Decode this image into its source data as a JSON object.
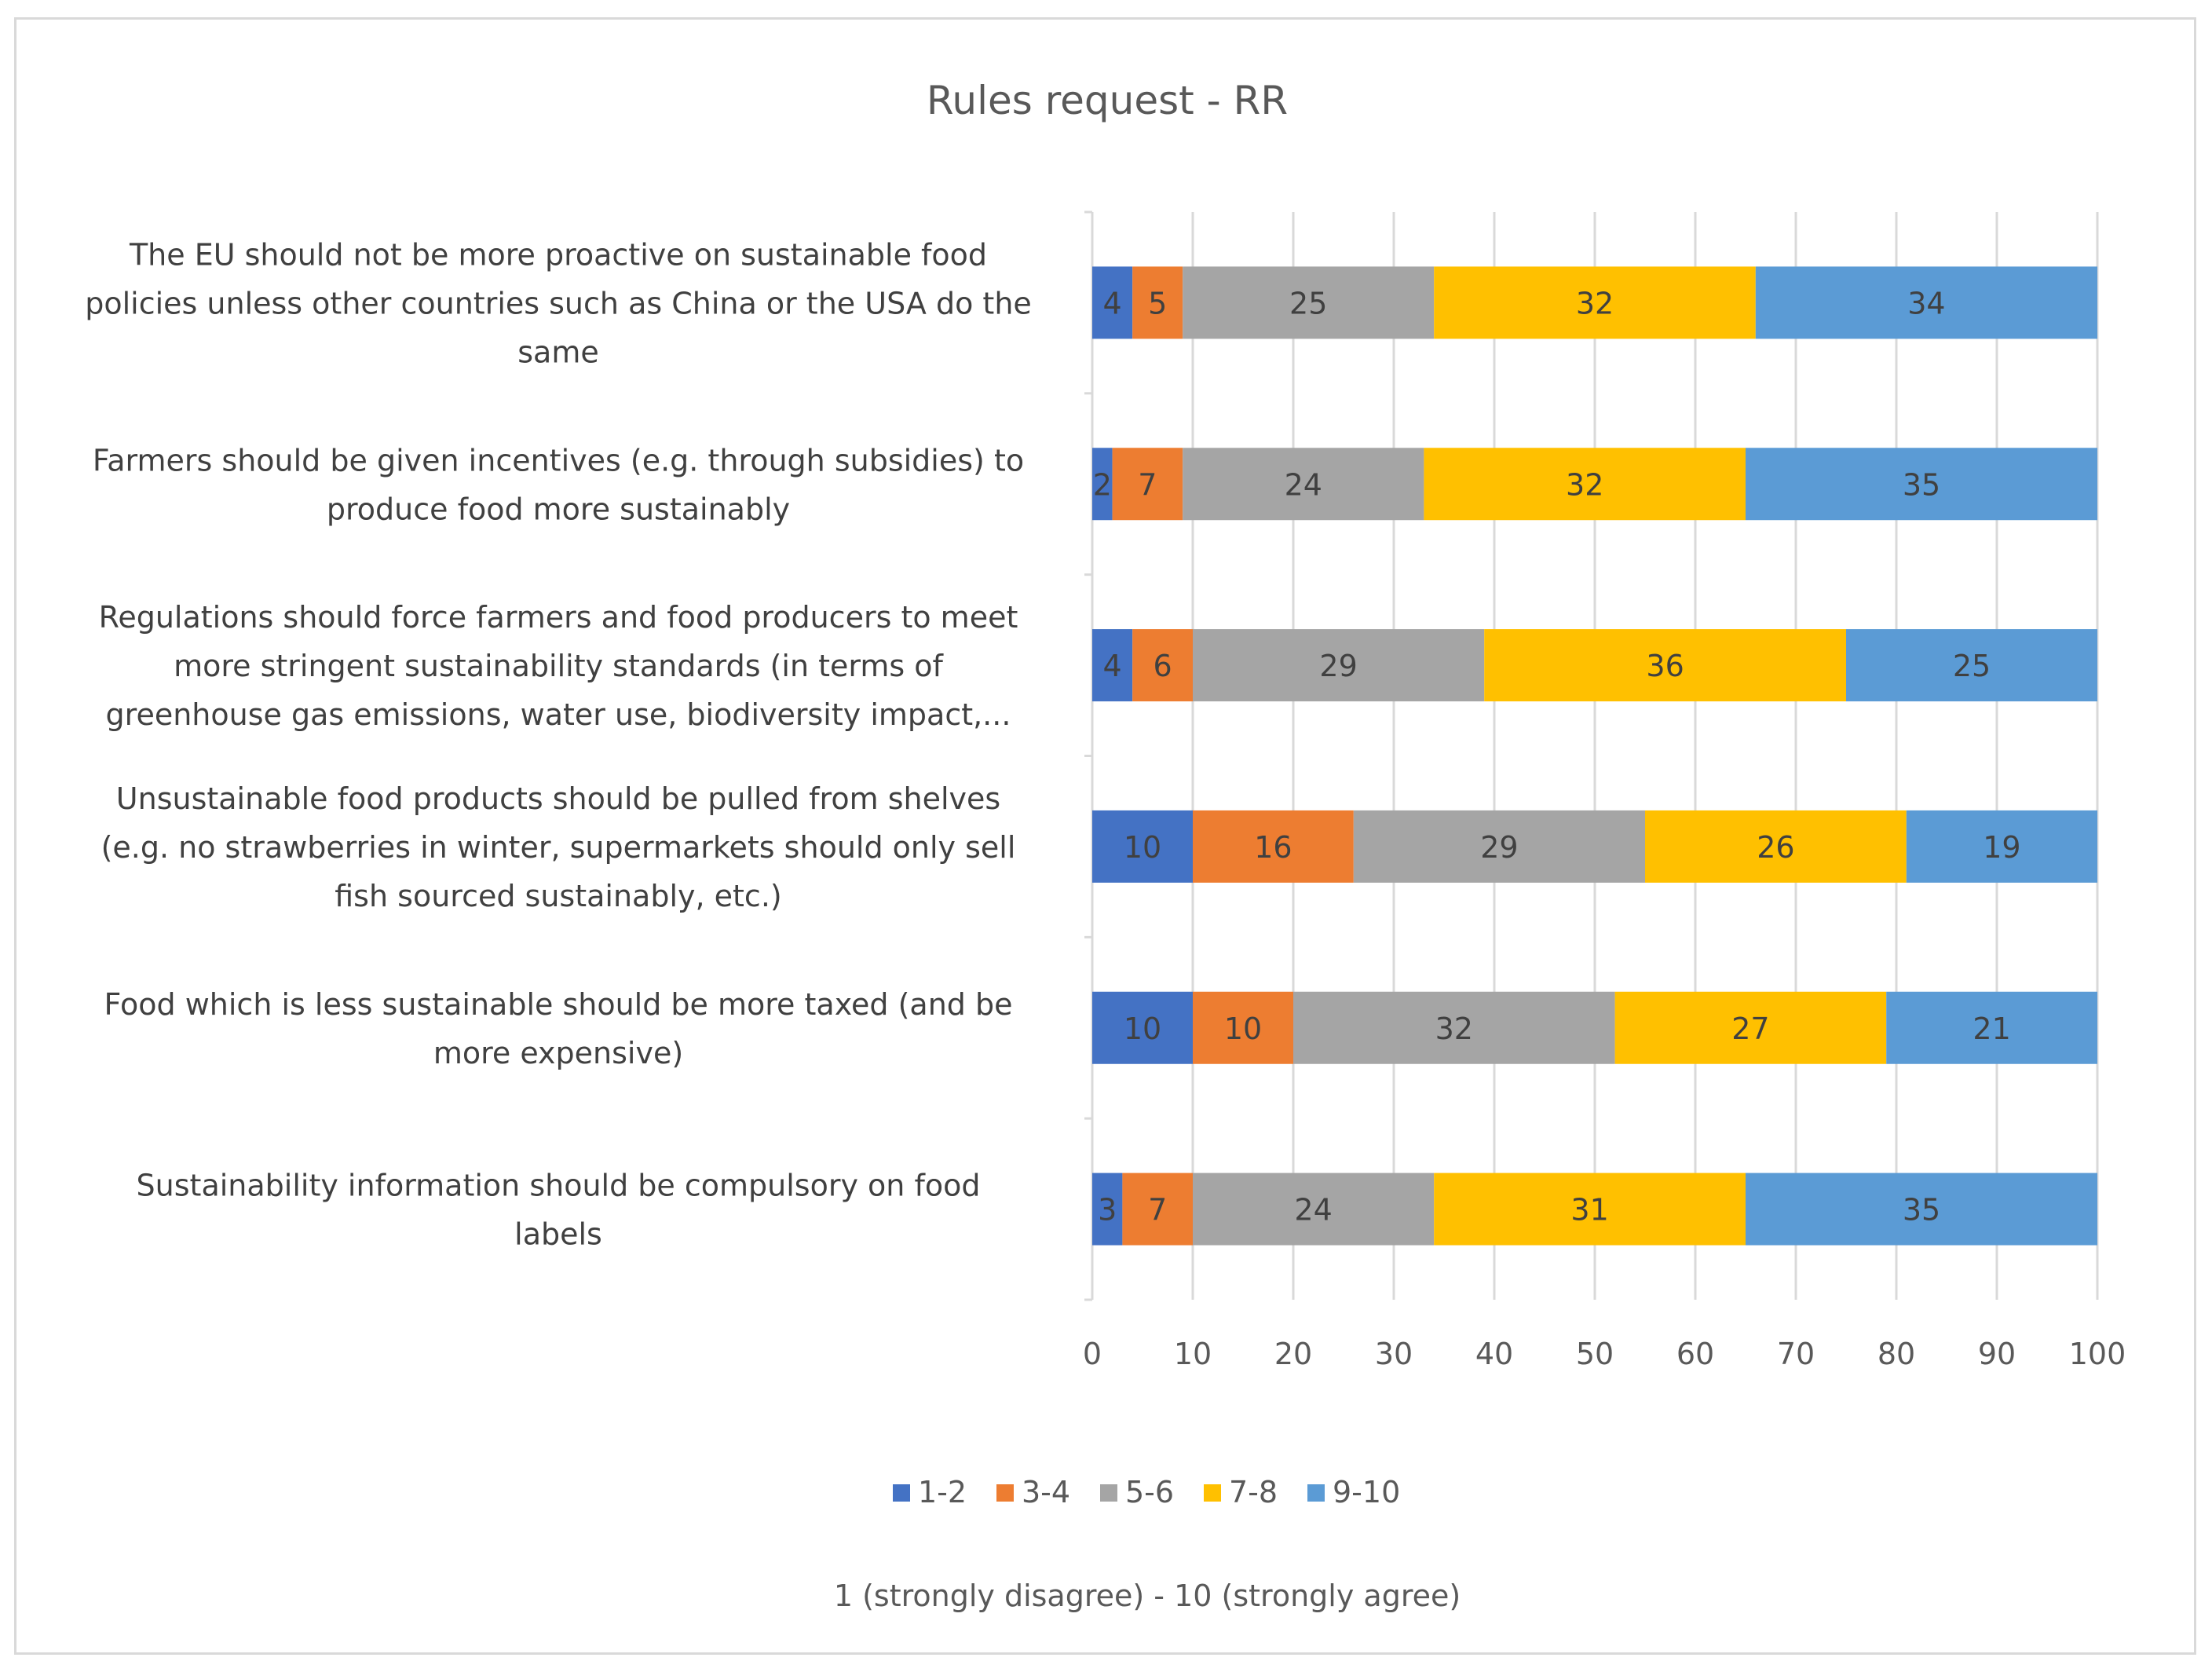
{
  "chart_data": {
    "type": "bar",
    "orientation": "horizontal",
    "stacked": true,
    "title": "Rules request - RR",
    "subtitle": "1 (strongly disagree) - 10 (strongly agree)",
    "xlabel": "",
    "ylabel": "",
    "xlim": [
      0,
      100
    ],
    "xticks": [
      0,
      10,
      20,
      30,
      40,
      50,
      60,
      70,
      80,
      90,
      100
    ],
    "grid": true,
    "legend_position": "bottom",
    "categories": [
      [
        "The EU should not be more proactive on sustainable food",
        "policies unless other countries such as China or the USA do the",
        "same"
      ],
      [
        "Farmers should be given incentives (e.g. through subsidies) to",
        "produce food more sustainably"
      ],
      [
        "Regulations should force farmers and food producers to meet",
        "more stringent sustainability standards (in terms of",
        "greenhouse gas emissions, water use, biodiversity impact,..."
      ],
      [
        "Unsustainable food products should be pulled from shelves",
        "(e.g. no strawberries in winter, supermarkets should only sell",
        "fish sourced sustainably, etc.)"
      ],
      [
        "Food which is less sustainable should be more taxed (and be",
        "more expensive)"
      ],
      [
        "Sustainability information should be compulsory on food",
        "labels"
      ]
    ],
    "series": [
      {
        "name": "1-2",
        "color": "#4472c4",
        "values": [
          4,
          2,
          4,
          10,
          10,
          3
        ]
      },
      {
        "name": "3-4",
        "color": "#ed7d31",
        "values": [
          5,
          7,
          6,
          16,
          10,
          7
        ]
      },
      {
        "name": "5-6",
        "color": "#a5a5a5",
        "values": [
          25,
          24,
          29,
          29,
          32,
          24
        ]
      },
      {
        "name": "7-8",
        "color": "#ffc000",
        "values": [
          32,
          32,
          36,
          26,
          27,
          31
        ]
      },
      {
        "name": "9-10",
        "color": "#5b9bd5",
        "values": [
          34,
          35,
          25,
          19,
          21,
          35
        ]
      }
    ],
    "colors": {
      "grid": "#d9d9d9",
      "axis": "#d9d9d9"
    }
  }
}
